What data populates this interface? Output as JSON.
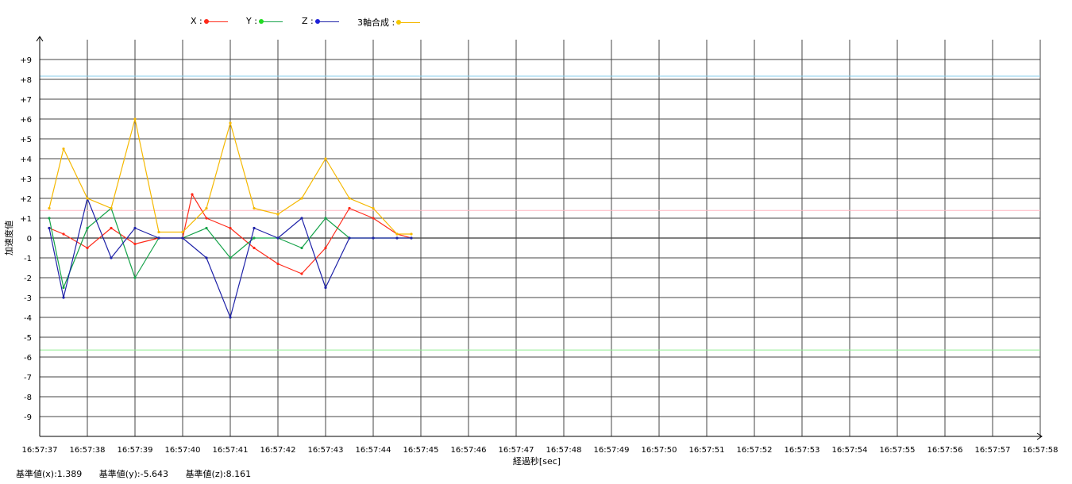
{
  "chart_data": {
    "type": "line",
    "xlabel": "経過秒[sec]",
    "ylabel": "加速度値",
    "ylim": [
      -10,
      10
    ],
    "y_ticks": [
      "+9",
      "+8",
      "+7",
      "+6",
      "+5",
      "+4",
      "+3",
      "+2",
      "+1",
      "0",
      "-1",
      "-2",
      "-3",
      "-4",
      "-5",
      "-6",
      "-7",
      "-8",
      "-9"
    ],
    "x_ticks": [
      "16:57:37",
      "16:57:38",
      "16:57:39",
      "16:57:40",
      "16:57:41",
      "16:57:42",
      "16:57:43",
      "16:57:44",
      "16:57:45",
      "16:57:46",
      "16:57:47",
      "16:57:48",
      "16:57:49",
      "16:57:50",
      "16:57:51",
      "16:57:52",
      "16:57:53",
      "16:57:54",
      "16:57:55",
      "16:57:56",
      "16:57:57",
      "16:57:58"
    ],
    "xlim": [
      "16:57:37",
      "16:57:58"
    ],
    "grid": true,
    "legend_position": "top",
    "series": [
      {
        "name": "X :",
        "color": "#ff2a1a",
        "x": [
          "16:57:37.2",
          "16:57:37.5",
          "16:57:38.0",
          "16:57:38.5",
          "16:57:39.0",
          "16:57:39.5",
          "16:57:40.0",
          "16:57:40.2",
          "16:57:40.5",
          "16:57:41.0",
          "16:57:41.5",
          "16:57:42.0",
          "16:57:42.5",
          "16:57:43.0",
          "16:57:43.5",
          "16:57:44.0",
          "16:57:44.5",
          "16:57:44.8"
        ],
        "values": [
          0.5,
          0.2,
          -0.5,
          0.5,
          -0.3,
          0.0,
          0.0,
          2.2,
          1.0,
          0.5,
          -0.5,
          -1.3,
          -1.8,
          -0.5,
          1.5,
          1.0,
          0.2,
          0.0
        ]
      },
      {
        "name": "Y :",
        "color": "#16a34a",
        "x": [
          "16:57:37.2",
          "16:57:37.5",
          "16:57:38.0",
          "16:57:38.5",
          "16:57:39.0",
          "16:57:39.5",
          "16:57:40.0",
          "16:57:40.5",
          "16:57:41.0",
          "16:57:41.5",
          "16:57:42.0",
          "16:57:42.5",
          "16:57:43.0",
          "16:57:43.5",
          "16:57:44.0",
          "16:57:44.5",
          "16:57:44.8"
        ],
        "values": [
          1.0,
          -2.5,
          0.5,
          1.5,
          -2.0,
          0.0,
          0.0,
          0.5,
          -1.0,
          0.0,
          0.0,
          -0.5,
          1.0,
          0.0,
          0.0,
          0.0,
          0.0
        ]
      },
      {
        "name": "Z :",
        "color": "#1e22a8",
        "x": [
          "16:57:37.2",
          "16:57:37.5",
          "16:57:38.0",
          "16:57:38.5",
          "16:57:39.0",
          "16:57:39.5",
          "16:57:40.0",
          "16:57:40.5",
          "16:57:41.0",
          "16:57:41.5",
          "16:57:42.0",
          "16:57:42.5",
          "16:57:43.0",
          "16:57:43.5",
          "16:57:44.0",
          "16:57:44.5",
          "16:57:44.8"
        ],
        "values": [
          0.5,
          -3.0,
          2.0,
          -1.0,
          0.5,
          0.0,
          0.0,
          -1.0,
          -4.0,
          0.5,
          0.0,
          1.0,
          -2.5,
          0.0,
          0.0,
          0.0,
          0.0
        ]
      },
      {
        "name": "3軸合成 :",
        "color": "#f5b800",
        "x": [
          "16:57:37.2",
          "16:57:37.5",
          "16:57:38.0",
          "16:57:38.5",
          "16:57:39.0",
          "16:57:39.5",
          "16:57:40.0",
          "16:57:40.5",
          "16:57:41.0",
          "16:57:41.5",
          "16:57:42.0",
          "16:57:42.5",
          "16:57:43.0",
          "16:57:43.5",
          "16:57:44.0",
          "16:57:44.5",
          "16:57:44.8"
        ],
        "values": [
          1.5,
          4.5,
          2.0,
          1.5,
          6.0,
          0.3,
          0.3,
          1.5,
          5.8,
          1.5,
          1.2,
          2.0,
          4.0,
          2.0,
          1.5,
          0.2,
          0.2
        ]
      }
    ],
    "reference_lines": [
      {
        "value": 8.161,
        "color": "#87ceeb"
      },
      {
        "value": 1.389,
        "color": "#ffb6c1"
      },
      {
        "value": -5.643,
        "color": "#90ee90"
      }
    ]
  },
  "footer": {
    "base_x": "基準値(x):1.389",
    "base_y": "基準値(y):-5.643",
    "base_z": "基準値(z):8.161"
  }
}
